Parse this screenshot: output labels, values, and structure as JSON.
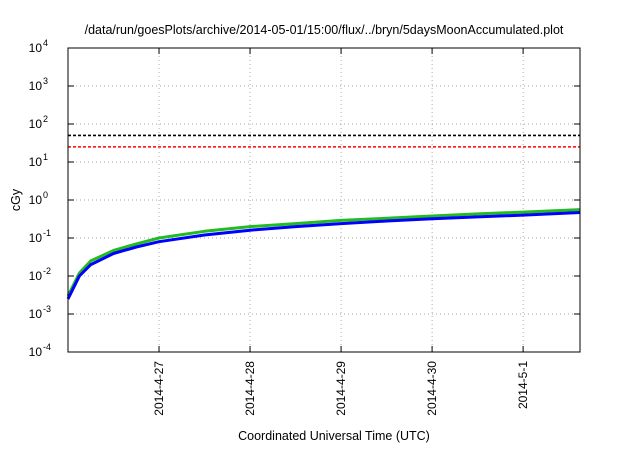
{
  "chart_data": {
    "type": "line",
    "title": "/data/run/goesPlots/archive/2014-05-01/15:00/flux/../bryn/5daysMoonAccumulated.plot",
    "xlabel": "Coordinated Universal Time (UTC)",
    "ylabel": "cGy",
    "y_scale": "log",
    "ylim": [
      0.0001,
      10000
    ],
    "xlim": [
      "2014-04-26 00:00",
      "2014-05-01 15:00"
    ],
    "grid": true,
    "x_ticks": [
      "2014-4-27",
      "2014-4-28",
      "2014-4-29",
      "2014-4-30",
      "2014-5-1"
    ],
    "y_ticks": [
      {
        "base": "10",
        "exp": "-4"
      },
      {
        "base": "10",
        "exp": "-3"
      },
      {
        "base": "10",
        "exp": "-2"
      },
      {
        "base": "10",
        "exp": "-1"
      },
      {
        "base": "10",
        "exp": "0"
      },
      {
        "base": "10",
        "exp": "1"
      },
      {
        "base": "10",
        "exp": "2"
      },
      {
        "base": "10",
        "exp": "3"
      },
      {
        "base": "10",
        "exp": "4"
      }
    ],
    "reference_lines": [
      {
        "y": 50,
        "color": "#000000",
        "style": "dashed"
      },
      {
        "y": 25,
        "color": "#ff0000",
        "style": "dashed"
      }
    ],
    "series": [
      {
        "color": "#22bb22",
        "x": [
          "2014-04-26 00:00",
          "2014-04-26 03:00",
          "2014-04-26 06:00",
          "2014-04-26 12:00",
          "2014-04-26 18:00",
          "2014-04-27 00:00",
          "2014-04-27 12:00",
          "2014-04-28 00:00",
          "2014-04-28 12:00",
          "2014-04-29 00:00",
          "2014-04-29 12:00",
          "2014-04-30 00:00",
          "2014-04-30 12:00",
          "2014-05-01 00:00",
          "2014-05-01 15:00"
        ],
        "values": [
          0.003,
          0.012,
          0.025,
          0.047,
          0.07,
          0.1,
          0.15,
          0.2,
          0.24,
          0.29,
          0.33,
          0.38,
          0.43,
          0.48,
          0.56
        ]
      },
      {
        "color": "#0000ff",
        "x": [
          "2014-04-26 00:00",
          "2014-04-26 03:00",
          "2014-04-26 06:00",
          "2014-04-26 12:00",
          "2014-04-26 18:00",
          "2014-04-27 00:00",
          "2014-04-27 12:00",
          "2014-04-28 00:00",
          "2014-04-28 12:00",
          "2014-04-29 00:00",
          "2014-04-29 12:00",
          "2014-04-30 00:00",
          "2014-04-30 12:00",
          "2014-05-01 00:00",
          "2014-05-01 15:00"
        ],
        "values": [
          0.0025,
          0.01,
          0.02,
          0.039,
          0.058,
          0.08,
          0.12,
          0.16,
          0.2,
          0.24,
          0.28,
          0.32,
          0.36,
          0.4,
          0.47
        ]
      }
    ]
  }
}
